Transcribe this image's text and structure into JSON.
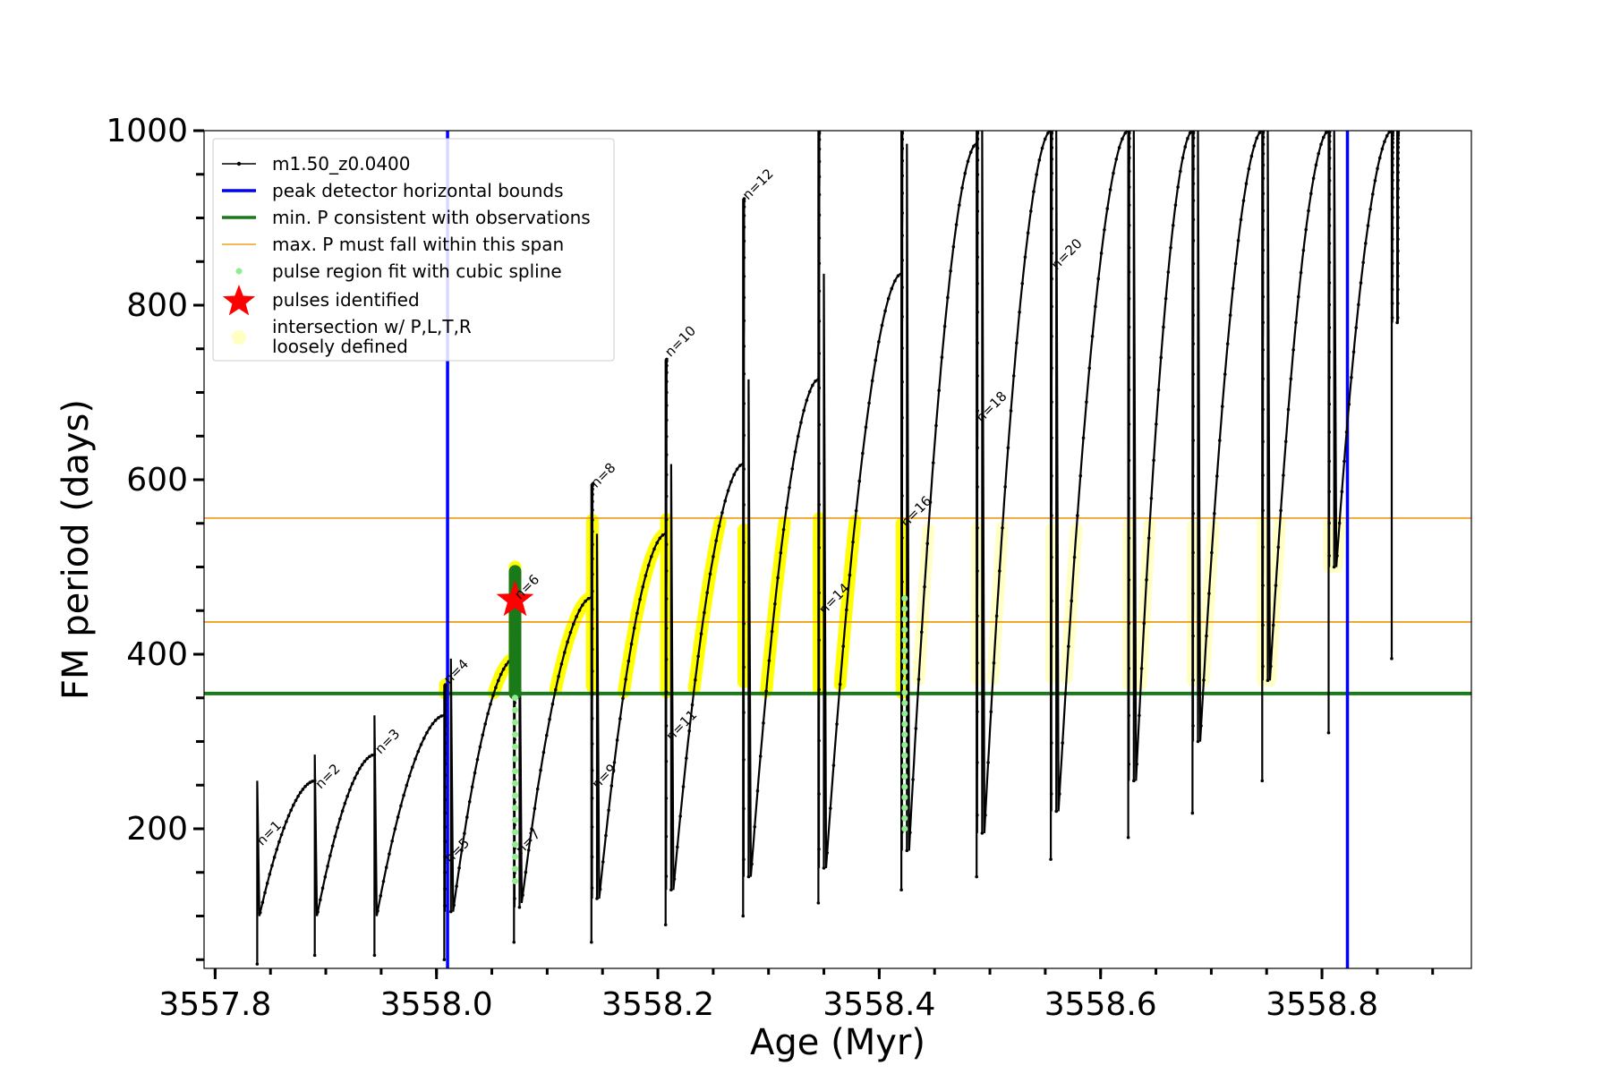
{
  "chart_data": {
    "type": "line",
    "xlabel": "Age (Myr)",
    "ylabel": "FM period (days)",
    "xlim": [
      3557.79,
      3558.935
    ],
    "ylim": [
      40,
      1000
    ],
    "xticks": [
      3557.8,
      3558.0,
      3558.2,
      3558.4,
      3558.6,
      3558.8
    ],
    "xtick_labels": [
      "3557.8",
      "3558.0",
      "3558.2",
      "3558.4",
      "3558.6",
      "3558.8"
    ],
    "yticks": [
      200,
      400,
      600,
      800,
      1000
    ],
    "ytick_labels": [
      "200",
      "400",
      "600",
      "800",
      "1000"
    ],
    "grid": false,
    "legend_position": "top-left",
    "colors": {
      "track": "#000000",
      "peak_bounds": "#0000ff",
      "min_p": "#1a7a1a",
      "max_p": "#f0a020",
      "spline": "#90ee90",
      "pulse": "#ff0000",
      "intersection": "#ffff00",
      "loose": "#ffffc0"
    },
    "legend": [
      {
        "label": "m1.50_z0.0400",
        "key": "track",
        "style": "line-dots"
      },
      {
        "label": "peak detector horizontal bounds",
        "key": "peak_bounds",
        "style": "line-thick"
      },
      {
        "label": "min. P consistent with observations",
        "key": "min_p",
        "style": "line-thick"
      },
      {
        "label": "max. P must fall within this span",
        "key": "max_p",
        "style": "line-thin"
      },
      {
        "label": "pulse region fit with cubic spline",
        "key": "spline",
        "style": "dot"
      },
      {
        "label": "pulses identified",
        "key": "pulse",
        "style": "star"
      },
      {
        "label": "intersection w/ P,L,T,R",
        "key": "loose",
        "style": "circle"
      },
      {
        "label": "loosely defined",
        "key": "loose",
        "style": "none"
      }
    ],
    "vlines": [
      3558.01,
      3558.823
    ],
    "hline_min": 355,
    "hlines_max": [
      437,
      556
    ],
    "pulses_identified": [
      {
        "x": 3558.071,
        "y": 462
      }
    ],
    "track": {
      "name": "m1.50_z0.0400",
      "pulses": [
        {
          "n": 1,
          "start": 3557.838,
          "end": 3557.89,
          "low": 45,
          "peak": 255,
          "min": 100,
          "max": 255
        },
        {
          "n": 2,
          "start": 3557.89,
          "end": 3557.944,
          "low": 55,
          "peak": 285,
          "min": 100,
          "max": 285
        },
        {
          "n": 3,
          "start": 3557.944,
          "end": 3558.007,
          "low": 55,
          "peak": 330,
          "min": 100,
          "max": 330
        },
        {
          "n": 4,
          "start": 3558.007,
          "end": 3558.008,
          "low": 50,
          "peak": 365,
          "min": 105,
          "max": 365
        },
        {
          "n": 5,
          "start": 3558.013,
          "end": 3558.07,
          "low": 105,
          "peak": 395,
          "min": 105,
          "max": 395
        },
        {
          "n": 6,
          "start": 3558.07,
          "end": 3558.071,
          "low": 70,
          "peak": 500,
          "min": 110,
          "max": 500
        },
        {
          "n": 7,
          "start": 3558.075,
          "end": 3558.14,
          "low": 110,
          "peak": 465,
          "min": 115,
          "max": 465
        },
        {
          "n": 8,
          "start": 3558.14,
          "end": 3558.141,
          "low": 70,
          "peak": 595,
          "min": 120,
          "max": 595
        },
        {
          "n": 9,
          "start": 3558.145,
          "end": 3558.207,
          "low": 120,
          "peak": 538,
          "min": 120,
          "max": 538
        },
        {
          "n": 10,
          "start": 3558.207,
          "end": 3558.208,
          "low": 90,
          "peak": 738,
          "min": 130,
          "max": 738
        },
        {
          "n": 11,
          "start": 3558.212,
          "end": 3558.277,
          "low": 130,
          "peak": 618,
          "min": 130,
          "max": 618
        },
        {
          "n": 12,
          "start": 3558.277,
          "end": 3558.278,
          "low": 100,
          "peak": 922,
          "min": 145,
          "max": 922
        },
        {
          "n": 13,
          "start": 3558.282,
          "end": 3558.345,
          "low": 145,
          "peak": 715,
          "min": 145,
          "max": 715
        },
        {
          "n": 14,
          "start": 3558.345,
          "end": 3558.346,
          "low": 115,
          "peak": 1000,
          "min": 155,
          "max": 1000
        },
        {
          "n": 15,
          "start": 3558.35,
          "end": 3558.42,
          "low": 155,
          "peak": 836,
          "min": 155,
          "max": 836
        },
        {
          "n": 16,
          "start": 3558.42,
          "end": 3558.421,
          "low": 130,
          "peak": 1000,
          "min": 175,
          "max": 1000
        },
        {
          "n": 17,
          "start": 3558.425,
          "end": 3558.488,
          "low": 175,
          "peak": 985,
          "min": 175,
          "max": 985
        },
        {
          "n": 18,
          "start": 3558.488,
          "end": 3558.489,
          "low": 145,
          "peak": 1000,
          "min": 195,
          "max": 1000
        },
        {
          "n": 19,
          "start": 3558.493,
          "end": 3558.555,
          "low": 195,
          "peak": 1000,
          "min": 195,
          "max": 1000
        },
        {
          "n": 20,
          "start": 3558.555,
          "end": 3558.556,
          "low": 165,
          "peak": 1000,
          "min": 220,
          "max": 1000
        },
        {
          "n": 21,
          "start": 3558.56,
          "end": 3558.625,
          "low": 220,
          "peak": 1000,
          "min": 220,
          "max": 1000
        },
        {
          "n": 22,
          "start": 3558.625,
          "end": 3558.626,
          "low": 190,
          "peak": 1000,
          "min": 255,
          "max": 1000
        },
        {
          "n": 23,
          "start": 3558.63,
          "end": 3558.683,
          "low": 255,
          "peak": 1000,
          "min": 255,
          "max": 1000
        },
        {
          "n": 24,
          "start": 3558.683,
          "end": 3558.684,
          "low": 218,
          "peak": 1000,
          "min": 300,
          "max": 1000
        },
        {
          "n": 25,
          "start": 3558.688,
          "end": 3558.746,
          "low": 300,
          "peak": 1000,
          "min": 300,
          "max": 1000
        },
        {
          "n": 26,
          "start": 3558.746,
          "end": 3558.747,
          "low": 255,
          "peak": 1000,
          "min": 370,
          "max": 1000
        },
        {
          "n": 27,
          "start": 3558.751,
          "end": 3558.806,
          "low": 370,
          "peak": 1000,
          "min": 370,
          "max": 1000
        },
        {
          "n": 28,
          "start": 3558.806,
          "end": 3558.807,
          "low": 310,
          "peak": 1000,
          "min": 500,
          "max": 1000
        },
        {
          "n": 29,
          "start": 3558.811,
          "end": 3558.863,
          "low": 500,
          "peak": 1000,
          "min": 500,
          "max": 1000
        },
        {
          "n": 30,
          "start": 3558.863,
          "end": 3558.864,
          "low": 395,
          "peak": 1000,
          "min": 780,
          "max": 1000
        },
        {
          "n": 31,
          "start": 3558.868,
          "end": 3558.869,
          "low": 780,
          "peak": 1000,
          "min": 780,
          "max": 1000
        }
      ]
    },
    "annotations": [
      {
        "text": "n=1",
        "x": 3557.84,
        "y": 180
      },
      {
        "text": "n=2",
        "x": 3557.893,
        "y": 245
      },
      {
        "text": "n=3",
        "x": 3557.947,
        "y": 285
      },
      {
        "text": "n=4",
        "x": 3558.009,
        "y": 365
      },
      {
        "text": "n=5",
        "x": 3558.01,
        "y": 160
      },
      {
        "text": "n=6",
        "x": 3558.073,
        "y": 462
      },
      {
        "text": "n=7",
        "x": 3558.074,
        "y": 170
      },
      {
        "text": "n=8",
        "x": 3558.142,
        "y": 590
      },
      {
        "text": "n=9",
        "x": 3558.143,
        "y": 245
      },
      {
        "text": "n=10",
        "x": 3558.209,
        "y": 740
      },
      {
        "text": "n=11",
        "x": 3558.21,
        "y": 300
      },
      {
        "text": "n=12",
        "x": 3558.279,
        "y": 920
      },
      {
        "text": "n=14",
        "x": 3558.348,
        "y": 445
      },
      {
        "text": "n=16",
        "x": 3558.422,
        "y": 545
      },
      {
        "text": "n=18",
        "x": 3558.49,
        "y": 665
      },
      {
        "text": "n=20",
        "x": 3558.558,
        "y": 840
      }
    ]
  }
}
